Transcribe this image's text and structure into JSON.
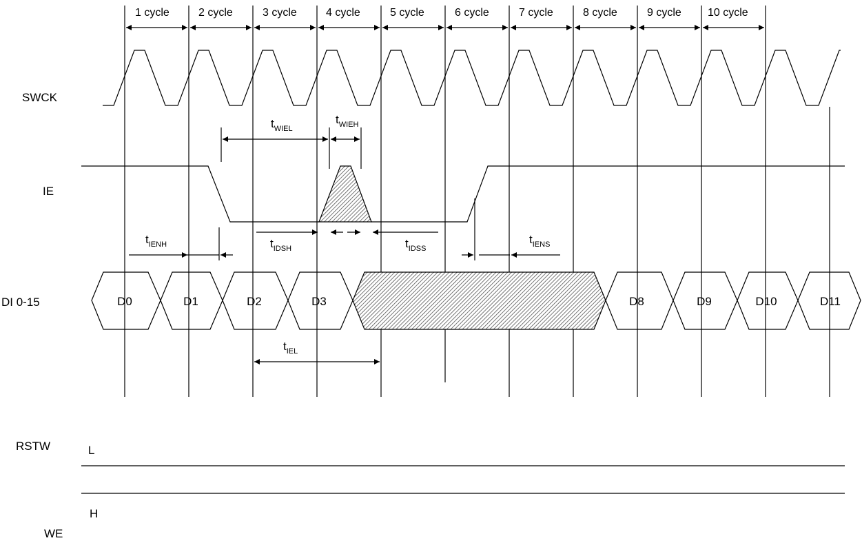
{
  "signals": {
    "swck": "SWCK",
    "ie": "IE",
    "di": "DI  0-15",
    "rstw": "RSTW",
    "we": "WE"
  },
  "cycles": [
    "1 cycle",
    "2 cycle",
    "3 cycle",
    "4 cycle",
    "5 cycle",
    "6 cycle",
    "7 cycle",
    "8 cycle",
    "9 cycle",
    "10 cycle"
  ],
  "data_words_left": [
    "D0",
    "D1",
    "D2",
    "D3"
  ],
  "data_words_right": [
    "D8",
    "D9",
    "D10",
    "D11"
  ],
  "timing": {
    "twiel": {
      "main": "t",
      "sub": "WIEL"
    },
    "twieh": {
      "main": "t",
      "sub": "WIEH"
    },
    "tienh": {
      "main": "t",
      "sub": "IENH"
    },
    "tidsh": {
      "main": "t",
      "sub": "IDSH"
    },
    "tidss": {
      "main": "t",
      "sub": "IDSS"
    },
    "tiens": {
      "main": "t",
      "sub": "IENS"
    },
    "tiel": {
      "main": "t",
      "sub": "IEL"
    }
  },
  "levels": {
    "rstw": "L",
    "we": "H"
  },
  "colors": {
    "line": "#000000",
    "hatch": "#555555"
  }
}
